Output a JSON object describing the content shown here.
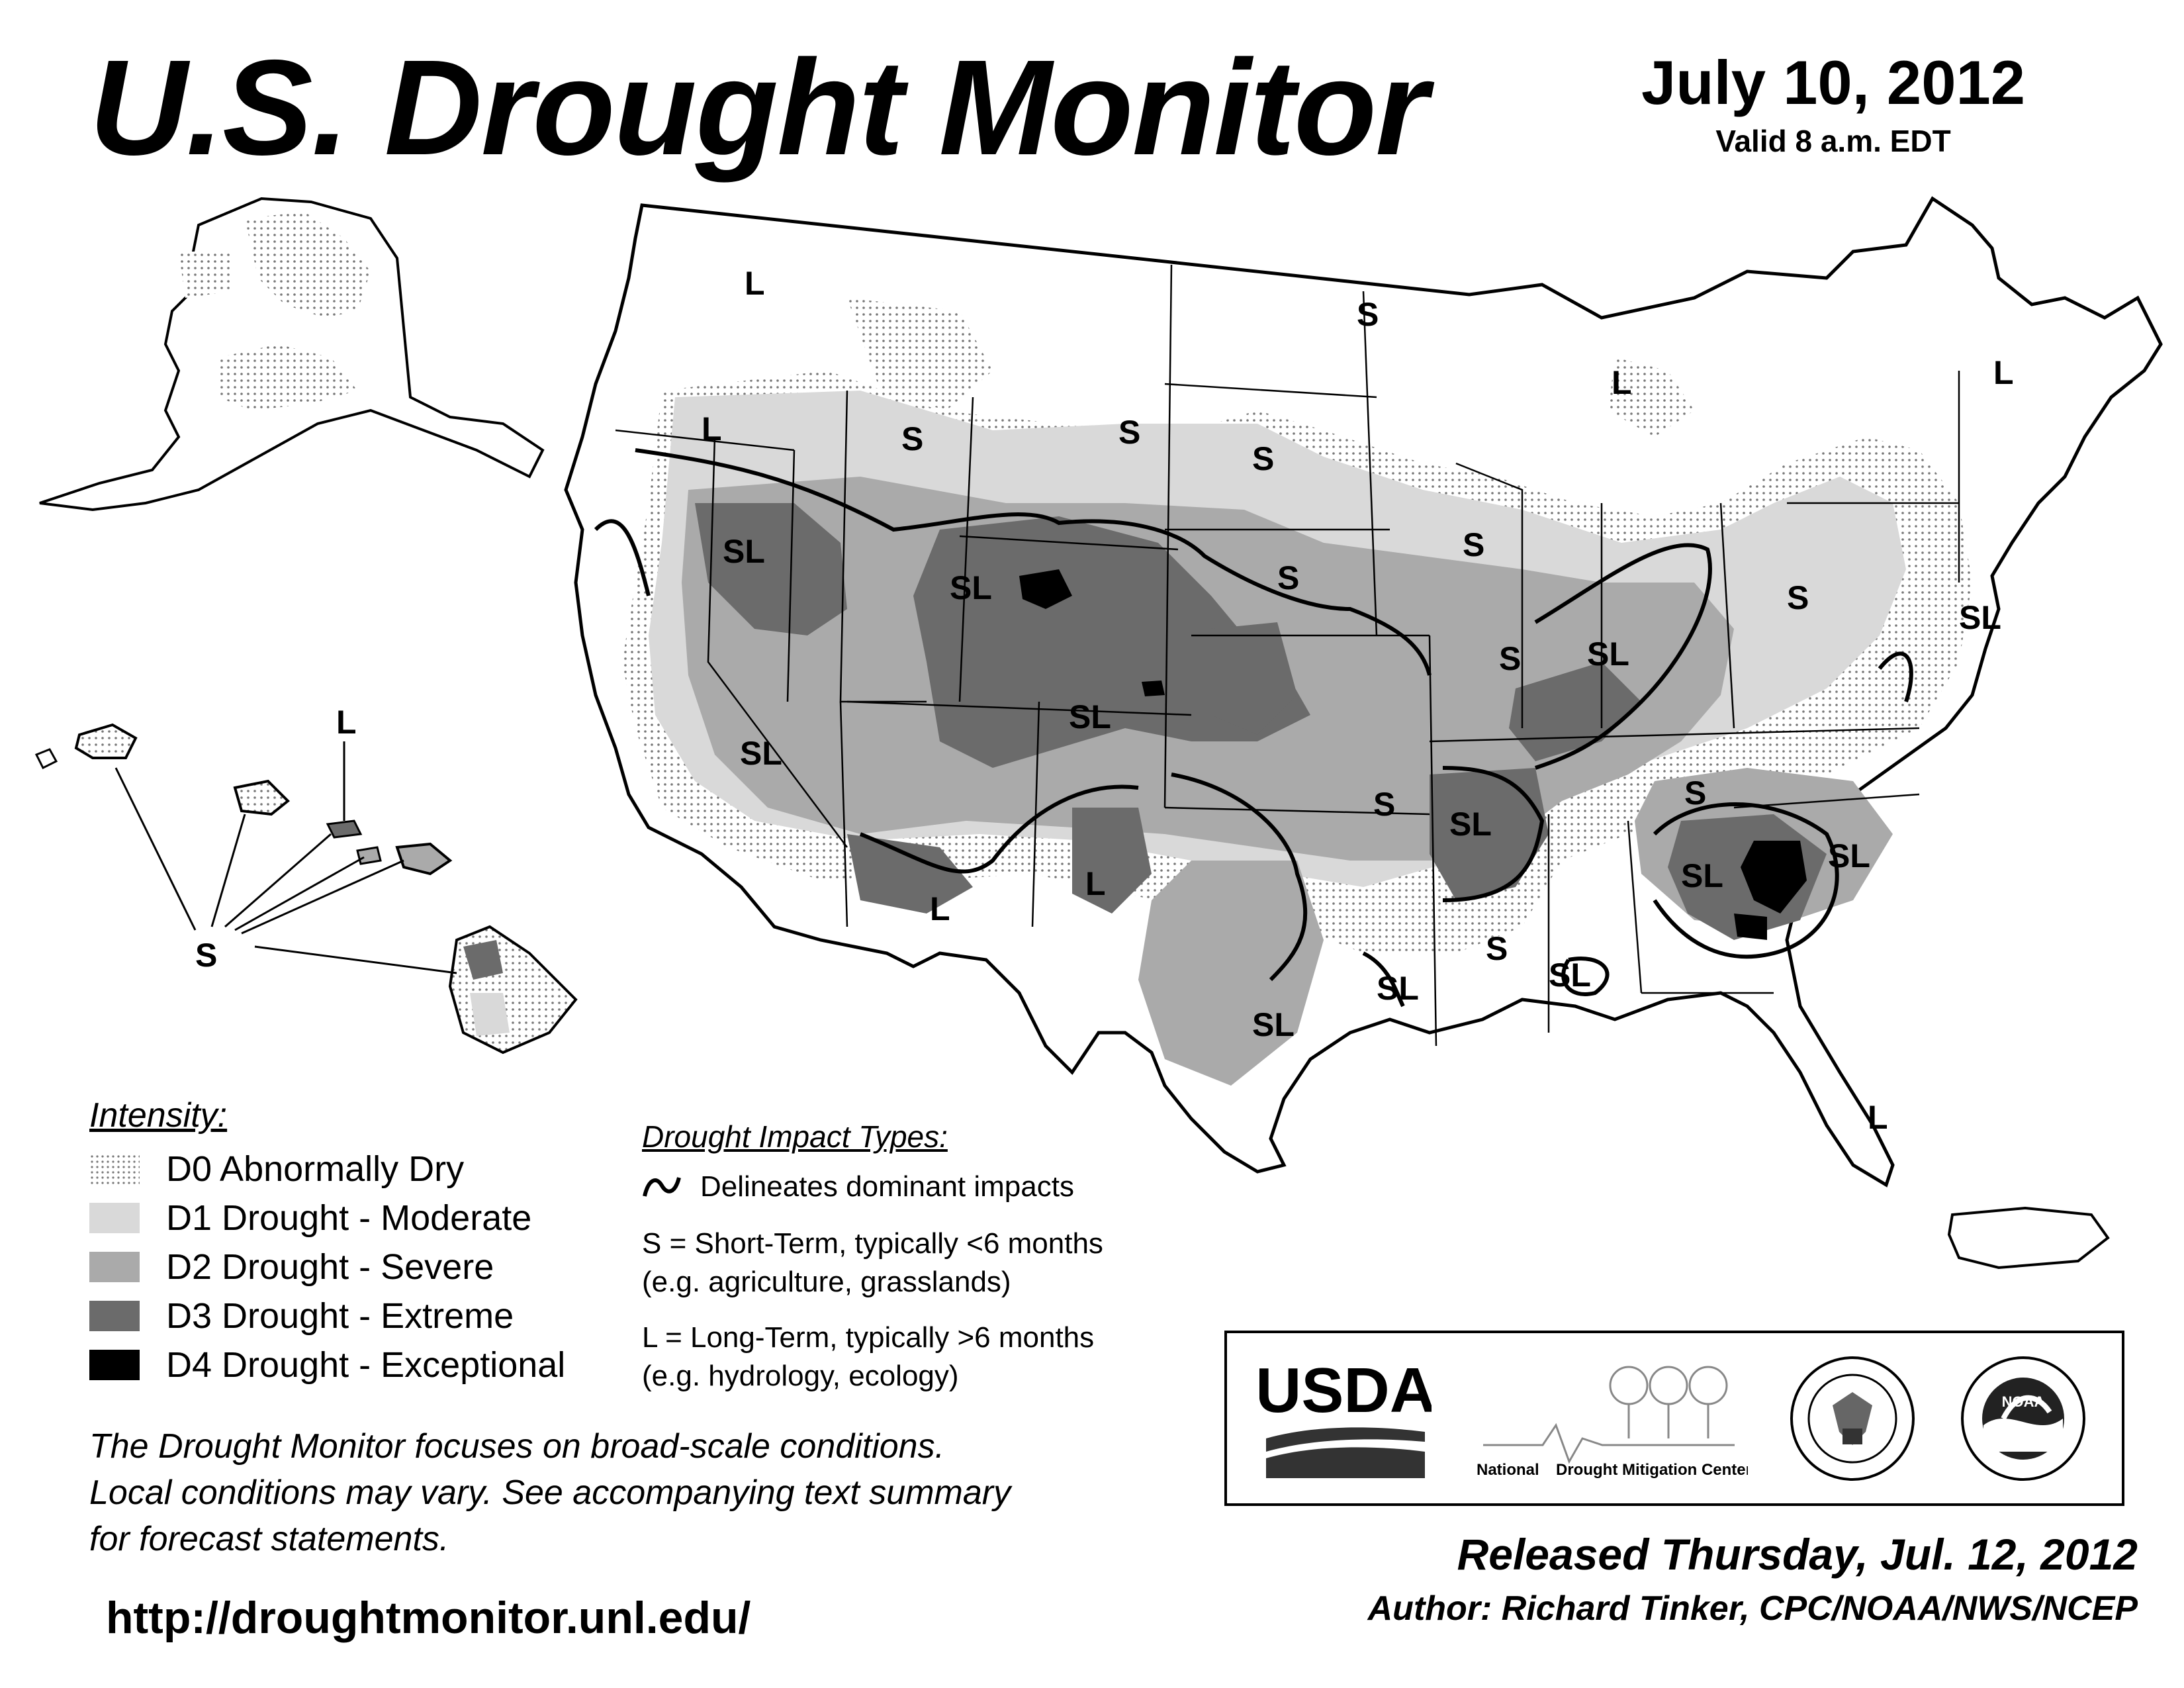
{
  "header": {
    "title": "U.S. Drought Monitor",
    "date": "July 10, 2012",
    "valid": "Valid 8 a.m. EDT"
  },
  "map_labels": {
    "sl": "SL",
    "s": "S",
    "l": "L"
  },
  "intensity": {
    "heading": "Intensity:",
    "items": [
      {
        "code": "D0",
        "label": "D0 Abnormally Dry",
        "color": "#f2f2f2"
      },
      {
        "code": "D1",
        "label": "D1 Drought - Moderate",
        "color": "#d9d9d9"
      },
      {
        "code": "D2",
        "label": "D2 Drought - Severe",
        "color": "#aaaaaa"
      },
      {
        "code": "D3",
        "label": "D3 Drought - Extreme",
        "color": "#6b6b6b"
      },
      {
        "code": "D4",
        "label": "D4 Drought - Exceptional",
        "color": "#000000"
      }
    ]
  },
  "impact_types": {
    "heading": "Drought Impact Types:",
    "delineates": "Delineates dominant impacts",
    "short_term_1": "S = Short-Term, typically <6 months",
    "short_term_2": "(e.g. agriculture, grasslands)",
    "long_term_1": "L = Long-Term, typically >6 months",
    "long_term_2": "(e.g. hydrology, ecology)"
  },
  "note": {
    "line1": "The Drought Monitor focuses on broad-scale conditions.",
    "line2": "Local conditions may vary. See accompanying text summary",
    "line3": "for forecast statements."
  },
  "url": "http://droughtmonitor.unl.edu/",
  "logos": {
    "usda": "USDA",
    "ndmc_1": "National",
    "ndmc_2": "Drought Mitigation Center",
    "noaa": "NOAA"
  },
  "footer": {
    "released": "Released Thursday, Jul. 12, 2012",
    "author": "Author: Richard Tinker, CPC/NOAA/NWS/NCEP"
  },
  "colors": {
    "d0": "#f2f2f2",
    "d1": "#d9d9d9",
    "d2": "#aaaaaa",
    "d3": "#6b6b6b",
    "d4": "#000000"
  }
}
